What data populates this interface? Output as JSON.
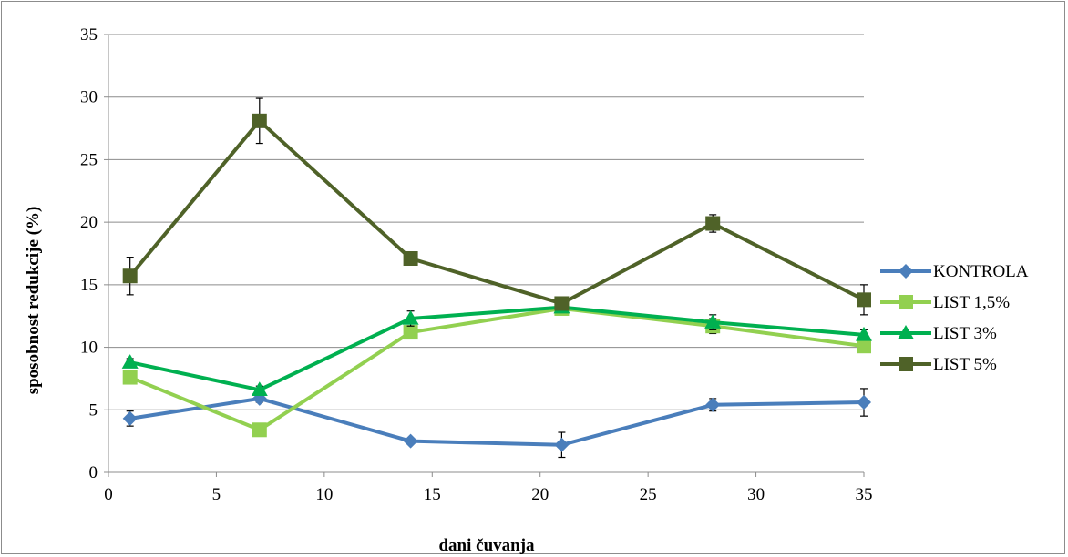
{
  "chart_data": {
    "type": "line",
    "title": "",
    "xlabel": "dani čuvanja",
    "ylabel": "sposobnost redukcije (%)",
    "xlim": [
      0,
      35
    ],
    "ylim": [
      0,
      35
    ],
    "xticks": [
      0,
      5,
      10,
      15,
      20,
      25,
      30,
      35
    ],
    "yticks": [
      0,
      5,
      10,
      15,
      20,
      25,
      30,
      35
    ],
    "grid": "horizontal",
    "legend_position": "right",
    "x": [
      1,
      7,
      14,
      21,
      28,
      35
    ],
    "series": [
      {
        "name": "KONTROLA",
        "color": "#4a7ebb",
        "marker": "diamond",
        "values": [
          4.3,
          5.9,
          2.5,
          2.2,
          5.4,
          5.6
        ],
        "errors": [
          0.6,
          0.3,
          0.2,
          1.0,
          0.5,
          1.1
        ]
      },
      {
        "name": "LIST 1,5%",
        "color": "#92d050",
        "marker": "square",
        "values": [
          7.6,
          3.4,
          11.2,
          13.1,
          11.7,
          10.1
        ],
        "errors": [
          0.4,
          0.2,
          0.4,
          0.2,
          0.6,
          0.4
        ]
      },
      {
        "name": "LIST 3%",
        "color": "#00b050",
        "marker": "triangle",
        "values": [
          8.8,
          6.6,
          12.3,
          13.2,
          12.0,
          11.0
        ],
        "errors": [
          0.3,
          0.3,
          0.6,
          0.2,
          0.6,
          0.4
        ]
      },
      {
        "name": "LIST 5%",
        "color": "#4f6228",
        "marker": "square",
        "values": [
          15.7,
          28.1,
          17.1,
          13.5,
          19.9,
          13.8
        ],
        "errors": [
          1.5,
          1.8,
          0.3,
          0.3,
          0.7,
          1.2
        ]
      }
    ]
  }
}
